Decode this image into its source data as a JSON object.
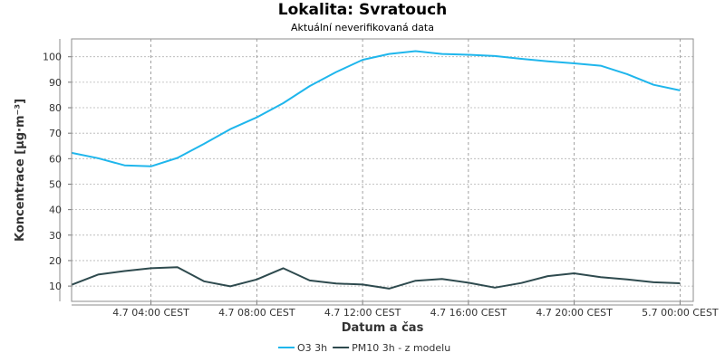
{
  "chart_data": {
    "type": "line",
    "title": "Lokalita: Svratouch",
    "subtitle": "Aktuální neverifikovaná data",
    "xlabel": "Datum a čas",
    "ylabel": "Koncentrace [µg·m⁻³]",
    "ylim": [
      4,
      107
    ],
    "yticks": [
      10,
      20,
      30,
      40,
      50,
      60,
      70,
      80,
      90,
      100
    ],
    "xlim": [
      1,
      24.5
    ],
    "xticks": [
      {
        "pos": 4,
        "label": "4.7 04:00 CEST"
      },
      {
        "pos": 8,
        "label": "4.7 08:00 CEST"
      },
      {
        "pos": 12,
        "label": "4.7 12:00 CEST"
      },
      {
        "pos": 16,
        "label": "4.7 16:00 CEST"
      },
      {
        "pos": 20,
        "label": "4.7 20:00 CEST"
      },
      {
        "pos": 24,
        "label": "5.7 00:00 CEST"
      }
    ],
    "grid": true,
    "legend_position": "bottom",
    "x": [
      1,
      2,
      3,
      4,
      5,
      6,
      7,
      8,
      9,
      10,
      11,
      12,
      13,
      14,
      15,
      16,
      17,
      18,
      19,
      20,
      21,
      22,
      23,
      24
    ],
    "series": [
      {
        "name": "O3 3h",
        "color": "#1fb6ec",
        "values": [
          62.3,
          60.2,
          57.4,
          57.0,
          60.3,
          65.8,
          71.6,
          76.2,
          81.8,
          88.5,
          94.0,
          98.8,
          101.1,
          102.2,
          101.1,
          100.8,
          100.3,
          99.2,
          98.2,
          97.4,
          96.5,
          93.2,
          89.0,
          86.8
        ]
      },
      {
        "name": "PM10 3h - z modelu",
        "color": "#2e4a4e",
        "values": [
          10.5,
          14.5,
          15.9,
          17.0,
          17.4,
          11.9,
          9.9,
          12.6,
          17.0,
          12.2,
          11.0,
          10.6,
          9.0,
          12.1,
          12.8,
          11.3,
          9.4,
          11.2,
          13.9,
          15.0,
          13.5,
          12.6,
          11.5,
          11.1
        ]
      }
    ]
  }
}
